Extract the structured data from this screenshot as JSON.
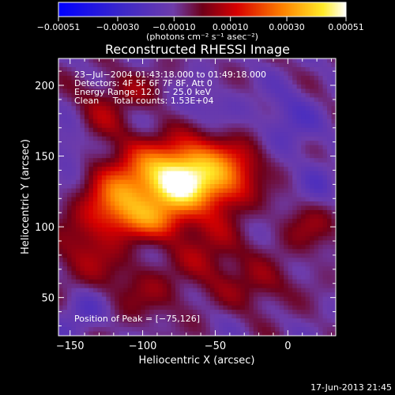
{
  "chart_data": {
    "type": "heatmap",
    "title": "Reconstructed RHESSI Image",
    "xlabel": "Heliocentric X (arcsec)",
    "ylabel": "Heliocentric Y (arcsec)",
    "xlim": [
      -158,
      33
    ],
    "ylim": [
      23,
      219
    ],
    "x_ticks": [
      -150,
      -100,
      -50,
      0
    ],
    "x_tick_labels": [
      "−150",
      "−100",
      "−50",
      "0"
    ],
    "y_ticks": [
      50,
      100,
      150,
      200
    ],
    "y_tick_labels": [
      "50",
      "100",
      "150",
      "200"
    ],
    "colorbar": {
      "range": [
        -0.00051,
        0.00051
      ],
      "ticks": [
        -0.00051,
        -0.0003,
        -0.0001,
        0.0001,
        0.0003,
        0.00051
      ],
      "tick_labels": [
        "−0.00051",
        "−0.00030",
        "−0.00010",
        "0.00010",
        "0.00030",
        "0.00051"
      ],
      "units": "(photons cm⁻² s⁻¹ asec⁻²)"
    },
    "annotations": [
      "23−Jul−2004 01:43:18.000 to 01:49:18.000",
      "Detectors: 4F 5F 6F 7F 8F, Att 0",
      "Energy Range: 12.0 − 25.0 keV",
      "Clean     Total counts: 1.53E+04"
    ],
    "peak_label": "Position of Peak = [−75,126]",
    "peak": [
      -75,
      126
    ],
    "sources": [
      {
        "x": -100,
        "y": 131,
        "sx": 22,
        "sy": 18,
        "amp": 0.00034
      },
      {
        "x": -67,
        "y": 143,
        "sx": 18,
        "sy": 15,
        "amp": 0.00036
      },
      {
        "x": -75,
        "y": 126,
        "sx": 14,
        "sy": 12,
        "amp": 0.0002
      },
      {
        "x": -45,
        "y": 128,
        "sx": 15,
        "sy": 13,
        "amp": 0.00024
      },
      {
        "x": -120,
        "y": 113,
        "sx": 15,
        "sy": 13,
        "amp": 0.00018
      },
      {
        "x": -90,
        "y": 104,
        "sx": 20,
        "sy": 10,
        "amp": 0.0002
      },
      {
        "x": -30,
        "y": 147,
        "sx": 14,
        "sy": 12,
        "amp": 0.00012
      },
      {
        "x": -140,
        "y": 83,
        "sx": 16,
        "sy": 18,
        "amp": 0.00014
      },
      {
        "x": -100,
        "y": 55,
        "sx": 25,
        "sy": 16,
        "amp": 0.0001
      },
      {
        "x": -52,
        "y": 82,
        "sx": 16,
        "sy": 16,
        "amp": 0.00014
      },
      {
        "x": 15,
        "y": 100,
        "sx": 14,
        "sy": 14,
        "amp": 0.00012
      },
      {
        "x": -20,
        "y": 58,
        "sx": 16,
        "sy": 12,
        "amp": 0.00012
      },
      {
        "x": -110,
        "y": 196,
        "sx": 20,
        "sy": 10,
        "amp": 0.0001
      },
      {
        "x": -130,
        "y": 176,
        "sx": 14,
        "sy": 12,
        "amp": 0.0001
      },
      {
        "x": -150,
        "y": 155,
        "sx": 10,
        "sy": 14,
        "amp": -0.0001
      },
      {
        "x": 0,
        "y": 175,
        "sx": 14,
        "sy": 16,
        "amp": -0.0001
      },
      {
        "x": -140,
        "y": 42,
        "sx": 12,
        "sy": 12,
        "amp": -0.00012
      },
      {
        "x": 20,
        "y": 130,
        "sx": 10,
        "sy": 14,
        "amp": -8e-05
      },
      {
        "x": -60,
        "y": 185,
        "sx": 16,
        "sy": 10,
        "amp": -7e-05
      }
    ]
  },
  "footer": {
    "timestamp": "17-Jun-2013 21:45"
  }
}
